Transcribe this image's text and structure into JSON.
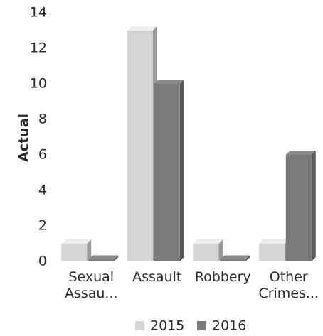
{
  "chart_data": {
    "type": "bar",
    "categories": [
      [
        "Sexual",
        "Assau..."
      ],
      [
        "Assault"
      ],
      [
        "Robbery"
      ],
      [
        "Other",
        "Crimes..."
      ]
    ],
    "series": [
      {
        "name": "2015",
        "values": [
          1,
          13,
          1,
          1
        ],
        "color": "#d4d4d4"
      },
      {
        "name": "2016",
        "values": [
          0.1,
          10,
          0.1,
          6
        ],
        "color": "#7a7a7a"
      }
    ],
    "ylabel": "Actual",
    "ylim": [
      0,
      14
    ],
    "yticks": [
      "0",
      "2",
      "4",
      "6",
      "8",
      "10",
      "12",
      "14"
    ],
    "grid": false,
    "legend": "bottom"
  }
}
